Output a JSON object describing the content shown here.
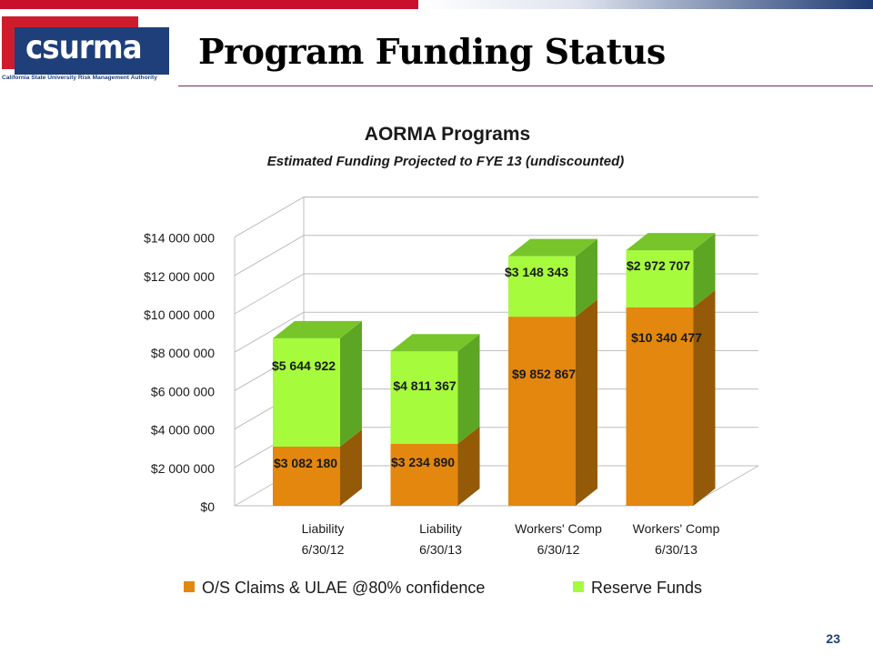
{
  "slide": {
    "title": "Program Funding Status",
    "number": "23",
    "logo": {
      "word": "csurma",
      "tagline": "California State University Risk Management Authority"
    }
  },
  "colors": {
    "claims": "#e3870e",
    "claims_side": "#955a08",
    "reserve": "#a6fb3c",
    "reserve_side": "#5da623",
    "reserve_top": "#77c52a",
    "claims_top": "#b8700c"
  },
  "chart_data": {
    "type": "bar",
    "stacked": true,
    "three_d": true,
    "title": "AORMA Programs",
    "subtitle": "Estimated Funding Projected to FYE 13 (undiscounted)",
    "categories": [
      [
        "Liability",
        "6/30/12"
      ],
      [
        "Liability",
        "6/30/13"
      ],
      [
        "Workers' Comp",
        "6/30/12"
      ],
      [
        "Workers' Comp",
        "6/30/13"
      ]
    ],
    "series": [
      {
        "name": "O/S Claims & ULAE @80% confidence",
        "values": [
          3082180,
          3234890,
          9852867,
          10340477
        ],
        "labels": [
          "$3 082 180",
          "$3 234 890",
          "$9 852 867",
          "$10 340 477"
        ]
      },
      {
        "name": "Reserve Funds",
        "values": [
          5644922,
          4811367,
          3148343,
          2972707
        ],
        "labels": [
          "$5 644 922",
          "$4 811 367",
          "$3 148 343",
          "$2 972 707"
        ]
      }
    ],
    "ylim": [
      0,
      14000000
    ],
    "yticks": [
      "$0",
      "$2 000 000",
      "$4 000 000",
      "$6 000 000",
      "$8 000 000",
      "$10 000 000",
      "$12 000 000",
      "$14 000 000"
    ],
    "ytick_values": [
      0,
      2000000,
      4000000,
      6000000,
      8000000,
      10000000,
      12000000,
      14000000
    ],
    "grid": true,
    "legend_position": "bottom"
  }
}
